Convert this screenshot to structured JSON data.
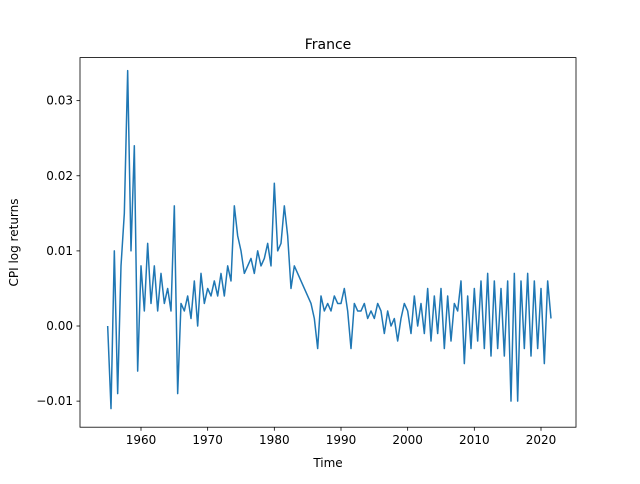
{
  "chart_data": {
    "type": "line",
    "title": "France",
    "x_label": "Time",
    "y_label": "CPI log returns",
    "x": [
      1955,
      1955.5,
      1956,
      1956.5,
      1957,
      1957.5,
      1958,
      1958.5,
      1959,
      1959.5,
      1960,
      1960.5,
      1961,
      1961.5,
      1962,
      1962.5,
      1963,
      1963.5,
      1964,
      1964.5,
      1965,
      1965.5,
      1966,
      1966.5,
      1967,
      1967.5,
      1968,
      1968.5,
      1969,
      1969.5,
      1970,
      1970.5,
      1971,
      1971.5,
      1972,
      1972.5,
      1973,
      1973.5,
      1974,
      1974.5,
      1975,
      1975.5,
      1976,
      1976.5,
      1977,
      1977.5,
      1978,
      1978.5,
      1979,
      1979.5,
      1980,
      1980.5,
      1981,
      1981.5,
      1982,
      1982.5,
      1983,
      1983.5,
      1984,
      1984.5,
      1985,
      1985.5,
      1986,
      1986.5,
      1987,
      1987.5,
      1988,
      1988.5,
      1989,
      1989.5,
      1990,
      1990.5,
      1991,
      1991.5,
      1992,
      1992.5,
      1993,
      1993.5,
      1994,
      1994.5,
      1995,
      1995.5,
      1996,
      1996.5,
      1997,
      1997.5,
      1998,
      1998.5,
      1999,
      1999.5,
      2000,
      2000.5,
      2001,
      2001.5,
      2002,
      2002.5,
      2003,
      2003.5,
      2004,
      2004.5,
      2005,
      2005.5,
      2006,
      2006.5,
      2007,
      2007.5,
      2008,
      2008.5,
      2009,
      2009.5,
      2010,
      2010.5,
      2011,
      2011.5,
      2012,
      2012.5,
      2013,
      2013.5,
      2014,
      2014.5,
      2015,
      2015.5,
      2016,
      2016.5,
      2017,
      2017.5,
      2018,
      2018.5,
      2019,
      2019.5,
      2020,
      2020.5,
      2021,
      2021.5
    ],
    "series": [
      {
        "name": "France",
        "color": "#1f77b4",
        "values": [
          0.0,
          -0.011,
          0.01,
          -0.009,
          0.008,
          0.015,
          0.034,
          0.01,
          0.024,
          -0.006,
          0.008,
          0.002,
          0.011,
          0.003,
          0.008,
          0.002,
          0.007,
          0.003,
          0.005,
          0.002,
          0.016,
          -0.009,
          0.003,
          0.002,
          0.004,
          0.001,
          0.006,
          0.0,
          0.007,
          0.003,
          0.005,
          0.004,
          0.006,
          0.004,
          0.007,
          0.004,
          0.008,
          0.006,
          0.016,
          0.012,
          0.01,
          0.007,
          0.008,
          0.009,
          0.007,
          0.01,
          0.008,
          0.009,
          0.011,
          0.008,
          0.019,
          0.01,
          0.011,
          0.016,
          0.012,
          0.005,
          0.008,
          0.007,
          0.006,
          0.005,
          0.004,
          0.003,
          0.001,
          -0.003,
          0.004,
          0.002,
          0.003,
          0.002,
          0.004,
          0.003,
          0.003,
          0.005,
          0.002,
          -0.003,
          0.003,
          0.002,
          0.002,
          0.003,
          0.001,
          0.002,
          0.001,
          0.003,
          0.002,
          -0.001,
          0.002,
          0.0,
          0.001,
          -0.002,
          0.001,
          0.003,
          0.002,
          -0.001,
          0.004,
          0.0,
          0.003,
          -0.001,
          0.005,
          -0.002,
          0.004,
          -0.001,
          0.005,
          -0.003,
          0.004,
          -0.002,
          0.003,
          0.002,
          0.006,
          -0.005,
          0.004,
          -0.003,
          0.005,
          -0.002,
          0.006,
          -0.003,
          0.007,
          -0.004,
          0.006,
          -0.003,
          0.005,
          -0.004,
          0.006,
          -0.01,
          0.007,
          -0.01,
          0.006,
          -0.003,
          0.007,
          -0.004,
          0.006,
          -0.003,
          0.005,
          -0.005,
          0.006,
          0.001
        ]
      }
    ],
    "xlim": [
      1950.85,
      2025.25
    ],
    "ylim": [
      -0.01347,
      0.03573
    ],
    "xticks": [
      1960,
      1970,
      1980,
      1990,
      2000,
      2010,
      2020
    ],
    "yticks": [
      {
        "value": -0.01,
        "label": "−0.01"
      },
      {
        "value": 0,
        "label": "0.00"
      },
      0.01,
      0.02,
      0.03
    ]
  }
}
